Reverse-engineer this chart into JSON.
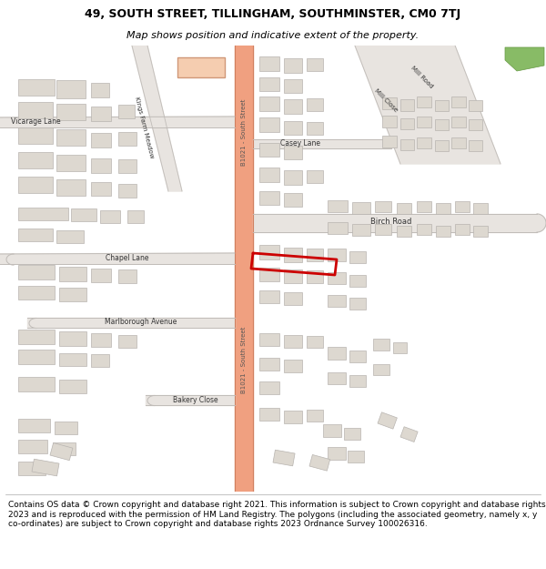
{
  "title_line1": "49, SOUTH STREET, TILLINGHAM, SOUTHMINSTER, CM0 7TJ",
  "title_line2": "Map shows position and indicative extent of the property.",
  "footer_lines": [
    "Contains OS data © Crown copyright and database right 2021. This information is subject to Crown copyright and database rights 2023 and is reproduced with the permission of",
    "HM Land Registry. The polygons (including the associated geometry, namely x, y co-ordinates) are subject to Crown copyright and database rights 2023 Ordnance Survey",
    "100026316."
  ],
  "map_bg": "#f7f5f2",
  "road_main_color": "#f0a080",
  "road_main_border": "#d08060",
  "road_side_color": "#e8e4e0",
  "road_side_border": "#c8c4c0",
  "building_fill": "#ddd8d0",
  "building_stroke": "#b8b4b0",
  "highlight_fill": "#f5cdb0",
  "highlight_stroke": "#d09878",
  "plot_color": "#cc0000",
  "green_color": "#88bb66",
  "label_color": "#333333",
  "road_label_color": "#555555"
}
